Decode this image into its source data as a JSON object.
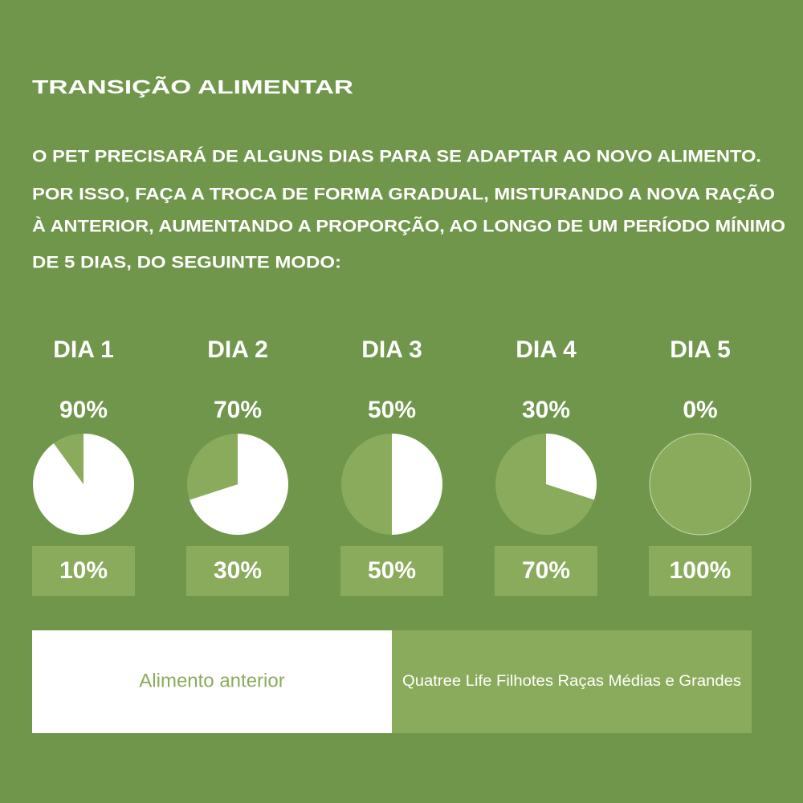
{
  "title": "TRANSIÇÃO ALIMENTAR",
  "intro": [
    "O PET PRECISARÁ DE ALGUNS DIAS PARA SE ADAPTAR AO NOVO ALIMENTO.",
    "POR ISSO, FAÇA A TROCA DE FORMA GRADUAL, MISTURANDO A NOVA RAÇÃO",
    "À ANTERIOR, AUMENTANDO A PROPORÇÃO, AO LONGO DE UM PERÍODO MÍNIMO",
    "DE 5 DIAS, DO SEGUINTE MODO:"
  ],
  "legend": [
    {
      "name": "Alimento anterior",
      "color": "#ffffff"
    },
    {
      "name": "Quatree Life Filhotes Raças Médias e Grandes",
      "color": "#8aab5c"
    }
  ],
  "chart_data": [
    {
      "type": "pie",
      "title": "DIA 1",
      "values": [
        90,
        10
      ],
      "value_labels": [
        "90%",
        "10%"
      ]
    },
    {
      "type": "pie",
      "title": "DIA 2",
      "values": [
        70,
        30
      ],
      "value_labels": [
        "70%",
        "30%"
      ]
    },
    {
      "type": "pie",
      "title": "DIA 3",
      "values": [
        50,
        50
      ],
      "value_labels": [
        "50%",
        "50%"
      ]
    },
    {
      "type": "pie",
      "title": "DIA 4",
      "values": [
        30,
        70
      ],
      "value_labels": [
        "30%",
        "70%"
      ]
    },
    {
      "type": "pie",
      "title": "DIA 5",
      "values": [
        0,
        100
      ],
      "value_labels": [
        "0%",
        "100%"
      ]
    }
  ]
}
